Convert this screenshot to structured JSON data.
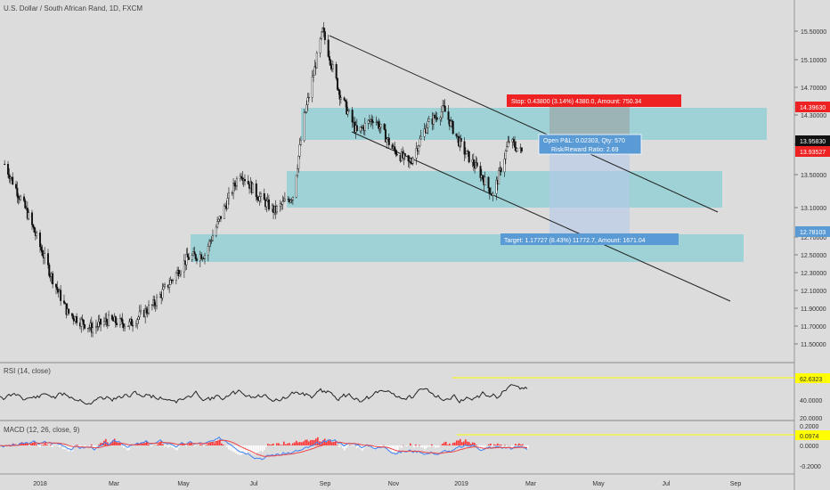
{
  "title": "U.S. Dollar / South African Rand, 1D, FXCM",
  "colors": {
    "background": "#dcdcdc",
    "zone": "#8ecfd4",
    "stop_zone": "#a8a8a8",
    "target_zone": "#a9c9da",
    "candle": "#111111",
    "rsi_line": "#222222",
    "yellow_line": "#ffff00",
    "red_badge": "#ee2222",
    "blue_badge": "#5b9bd5",
    "macd_hist_pos": "#ff3333",
    "macd_hist_neg": "#ffffff",
    "macd_line": "#3b82f6",
    "signal_line": "#ef4444",
    "channel": "#222222"
  },
  "time_axis": [
    "2018",
    "Mar",
    "May",
    "Jul",
    "Sep",
    "Nov",
    "2019",
    "Mar",
    "May",
    "Jul",
    "Sep"
  ],
  "price_axis": [
    "15.50000",
    "15.10000",
    "14.70000",
    "14.30000",
    "13.90000",
    "13.50000",
    "13.10000",
    "12.70000",
    "12.50000",
    "12.30000",
    "12.10000",
    "11.90000",
    "11.70000",
    "11.50000"
  ],
  "price_badges": {
    "stop": "14.39630",
    "current": "13.95830",
    "last": "13.93527",
    "target": "12.78103"
  },
  "position": {
    "stop_label": "Stop: 0.43800 (3.14%) 4380.0, Amount: 750.34",
    "pnl_label": "Open P&L: 0.02303, Qty: 570",
    "rr_label": "Risk/Reward Ratio: 2.69",
    "target_label": "Target: 1.17727 (8.43%) 11772.7, Amount: 1671.04"
  },
  "rsi": {
    "label": "RSI (14, close)",
    "axis": [
      "62.6323",
      "40.0000",
      "20.0000"
    ]
  },
  "macd": {
    "label": "MACD (12, 26, close, 9)",
    "axis": [
      "0.2000",
      "0.0974",
      "0.0000",
      "-0.2000"
    ]
  },
  "chart_data": {
    "type": "candlestick",
    "title": "U.S. Dollar / South African Rand, 1D, FXCM",
    "x_period": [
      "2017-12",
      "2019-02"
    ],
    "ylim": [
      11.4,
      15.75
    ],
    "close_path": [
      {
        "date": "2017-12-01",
        "close": 13.8
      },
      {
        "date": "2017-12-20",
        "close": 13.2
      },
      {
        "date": "2018-01-10",
        "close": 12.4
      },
      {
        "date": "2018-01-25",
        "close": 11.9
      },
      {
        "date": "2018-02-15",
        "close": 11.7
      },
      {
        "date": "2018-03-01",
        "close": 11.8
      },
      {
        "date": "2018-03-20",
        "close": 11.75
      },
      {
        "date": "2018-04-10",
        "close": 12.0
      },
      {
        "date": "2018-04-25",
        "close": 12.3
      },
      {
        "date": "2018-05-10",
        "close": 12.6
      },
      {
        "date": "2018-05-25",
        "close": 12.65
      },
      {
        "date": "2018-06-10",
        "close": 13.2
      },
      {
        "date": "2018-06-25",
        "close": 13.7
      },
      {
        "date": "2018-07-10",
        "close": 13.4
      },
      {
        "date": "2018-07-25",
        "close": 13.2
      },
      {
        "date": "2018-08-10",
        "close": 13.4
      },
      {
        "date": "2018-08-20",
        "close": 14.4
      },
      {
        "date": "2018-09-05",
        "close": 15.5
      },
      {
        "date": "2018-09-20",
        "close": 14.7
      },
      {
        "date": "2018-10-05",
        "close": 14.2
      },
      {
        "date": "2018-10-20",
        "close": 14.4
      },
      {
        "date": "2018-11-05",
        "close": 14.0
      },
      {
        "date": "2018-11-20",
        "close": 13.8
      },
      {
        "date": "2018-12-05",
        "close": 14.3
      },
      {
        "date": "2018-12-20",
        "close": 14.5
      },
      {
        "date": "2019-01-05",
        "close": 14.0
      },
      {
        "date": "2019-01-20",
        "close": 13.7
      },
      {
        "date": "2019-02-01",
        "close": 13.4
      },
      {
        "date": "2019-02-15",
        "close": 14.1
      },
      {
        "date": "2019-02-26",
        "close": 13.95
      }
    ],
    "zones": [
      {
        "name": "upper",
        "from": 13.97,
        "to": 14.42
      },
      {
        "name": "middle",
        "from": 13.12,
        "to": 13.58
      },
      {
        "name": "lower",
        "from": 12.46,
        "to": 12.81
      }
    ],
    "channel_lines": [
      {
        "from": {
          "date": "2018-09-05",
          "price": 15.5
        },
        "to": {
          "date": "2019-09-15",
          "price": 13.1
        }
      },
      {
        "from": {
          "date": "2018-10-01",
          "price": 13.95
        },
        "to": {
          "date": "2019-09-15",
          "price": 11.95
        }
      }
    ],
    "rsi_last": 62.6323,
    "macd_last": 0.0974
  }
}
